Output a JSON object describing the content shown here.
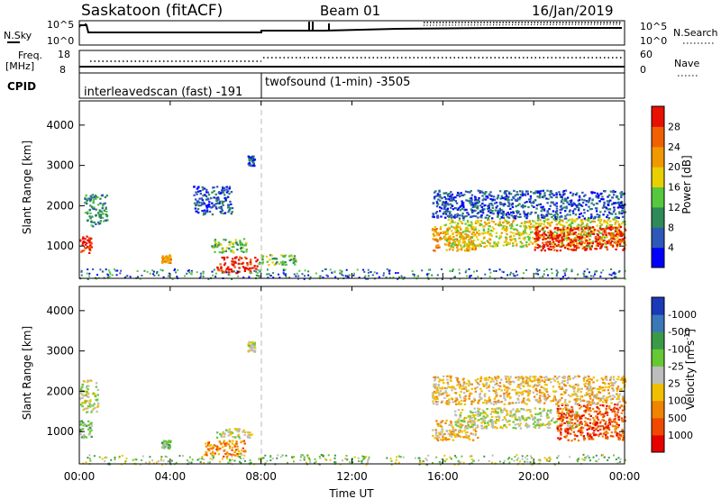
{
  "header": {
    "station": "Saskatoon (fitACF)",
    "beam": "Beam 01",
    "date": "16/Jan/2019"
  },
  "top_panels": {
    "nsky_label": "N.Sky",
    "nsky_ticks": [
      "10^5",
      "10^0"
    ],
    "nsearch_label": "N.Search",
    "nsearch_ticks": [
      "10^5",
      "10^0"
    ],
    "freq_label_1": "Freq.",
    "freq_label_2": "[MHz]",
    "freq_ticks": [
      "18",
      "8"
    ],
    "nave_label": "Nave",
    "nave_ticks": [
      "60",
      "0"
    ],
    "cpid_label": "CPID",
    "cpid_segments": [
      "interleavedscan (fast) -191",
      "twofsound (1-min) -3505"
    ]
  },
  "chart_data": [
    {
      "type": "heatmap",
      "title": "",
      "xlabel": "Time UT",
      "ylabel": "Slant Range [km]",
      "x_ticks": [
        "00:00",
        "04:00",
        "08:00",
        "12:00",
        "16:00",
        "20:00",
        "00:00"
      ],
      "y_ticks": [
        1000,
        2000,
        3000,
        4000
      ],
      "ylim": [
        200,
        4600
      ],
      "xlim_hours": [
        0,
        24
      ],
      "colorbar": {
        "label": "Power [dB]",
        "ticks": [
          "4",
          "8",
          "12",
          "16",
          "20",
          "24",
          "28"
        ],
        "colors": [
          "#0000ff",
          "#2e58b8",
          "#2e8a58",
          "#55c83e",
          "#e8d000",
          "#f09800",
          "#f06000",
          "#e81000"
        ]
      },
      "echo_regions": [
        {
          "t0": 0.0,
          "t1": 0.5,
          "r0": 850,
          "r1": 1300,
          "level": 7
        },
        {
          "t0": 0.2,
          "t1": 1.2,
          "r0": 1500,
          "r1": 2300,
          "level": 2
        },
        {
          "t0": 3.6,
          "t1": 4.0,
          "r0": 600,
          "r1": 800,
          "level": 5
        },
        {
          "t0": 5.0,
          "t1": 6.7,
          "r0": 1800,
          "r1": 2500,
          "level": 1
        },
        {
          "t0": 5.8,
          "t1": 7.4,
          "r0": 850,
          "r1": 1200,
          "level": 3
        },
        {
          "t0": 6.0,
          "t1": 7.8,
          "r0": 350,
          "r1": 750,
          "level": 7
        },
        {
          "t0": 7.4,
          "t1": 7.7,
          "r0": 3000,
          "r1": 3250,
          "level": 1
        },
        {
          "t0": 7.8,
          "t1": 9.5,
          "r0": 550,
          "r1": 800,
          "level": 3
        },
        {
          "t0": 15.5,
          "t1": 17.5,
          "r0": 900,
          "r1": 1500,
          "level": 5
        },
        {
          "t0": 16.0,
          "t1": 24.0,
          "r0": 1000,
          "r1": 1700,
          "level": 4
        },
        {
          "t0": 20.0,
          "t1": 24.0,
          "r0": 900,
          "r1": 1500,
          "level": 7
        },
        {
          "t0": 15.5,
          "t1": 24.0,
          "r0": 1700,
          "r1": 2400,
          "level": 1
        }
      ]
    },
    {
      "type": "heatmap",
      "title": "",
      "xlabel": "Time UT",
      "ylabel": "Slant Range [km]",
      "x_ticks": [
        "00:00",
        "04:00",
        "08:00",
        "12:00",
        "16:00",
        "20:00",
        "00:00"
      ],
      "y_ticks": [
        1000,
        2000,
        3000,
        4000
      ],
      "ylim": [
        200,
        4600
      ],
      "xlim_hours": [
        0,
        24
      ],
      "colorbar": {
        "label": "Velocity [m s^-1]",
        "ticks": [
          "1000",
          "500",
          "100",
          "25",
          "-25",
          "-100",
          "-500",
          "-1000"
        ],
        "colors": [
          "#1a3ab8",
          "#3a78b8",
          "#3a9a48",
          "#66c833",
          "#bdbdbd",
          "#f0c000",
          "#f08400",
          "#f04800",
          "#e80000"
        ]
      },
      "echo_regions": [
        {
          "t0": 0.0,
          "t1": 0.8,
          "r0": 1500,
          "r1": 2300,
          "level": 4
        },
        {
          "t0": 0.0,
          "t1": 0.5,
          "r0": 850,
          "r1": 1300,
          "level": 3
        },
        {
          "t0": 3.6,
          "t1": 4.0,
          "r0": 600,
          "r1": 800,
          "level": 3
        },
        {
          "t0": 5.5,
          "t1": 7.3,
          "r0": 400,
          "r1": 800,
          "level": 6
        },
        {
          "t0": 6.0,
          "t1": 7.6,
          "r0": 850,
          "r1": 1100,
          "level": 4
        },
        {
          "t0": 7.4,
          "t1": 7.7,
          "r0": 3000,
          "r1": 3250,
          "level": 4
        },
        {
          "t0": 15.5,
          "t1": 17.5,
          "r0": 800,
          "r1": 1300,
          "level": 5
        },
        {
          "t0": 16.5,
          "t1": 22.0,
          "r0": 1100,
          "r1": 1600,
          "level": 4
        },
        {
          "t0": 21.0,
          "t1": 24.0,
          "r0": 800,
          "r1": 1700,
          "level": 7
        },
        {
          "t0": 15.5,
          "t1": 24.0,
          "r0": 1700,
          "r1": 2400,
          "level": 5
        }
      ]
    }
  ]
}
